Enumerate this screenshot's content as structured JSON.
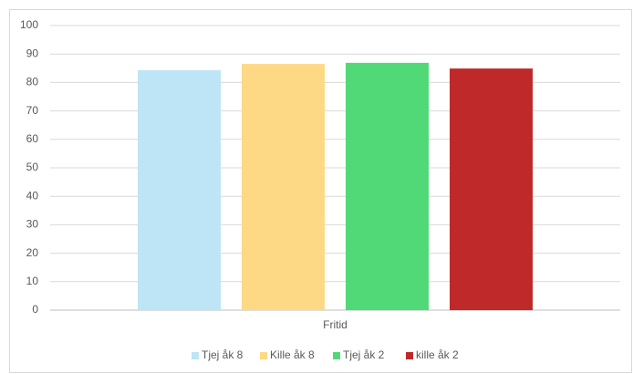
{
  "chart_data": {
    "type": "bar",
    "categories": [
      "Fritid"
    ],
    "series": [
      {
        "name": "Tjej åk 8",
        "color": "#bde5f5",
        "values": [
          84.3
        ]
      },
      {
        "name": "Kille åk 8",
        "color": "#fdd985",
        "values": [
          86.5
        ]
      },
      {
        "name": "Tjej åk 2",
        "color": "#52d977",
        "values": [
          86.9
        ]
      },
      {
        "name": "kille åk 2",
        "color": "#c0292a",
        "values": [
          84.9
        ]
      }
    ],
    "ylim": [
      0,
      100
    ],
    "yticks": [
      0,
      10,
      20,
      30,
      40,
      50,
      60,
      70,
      80,
      90,
      100
    ],
    "grid": true,
    "legend": "bottom"
  }
}
